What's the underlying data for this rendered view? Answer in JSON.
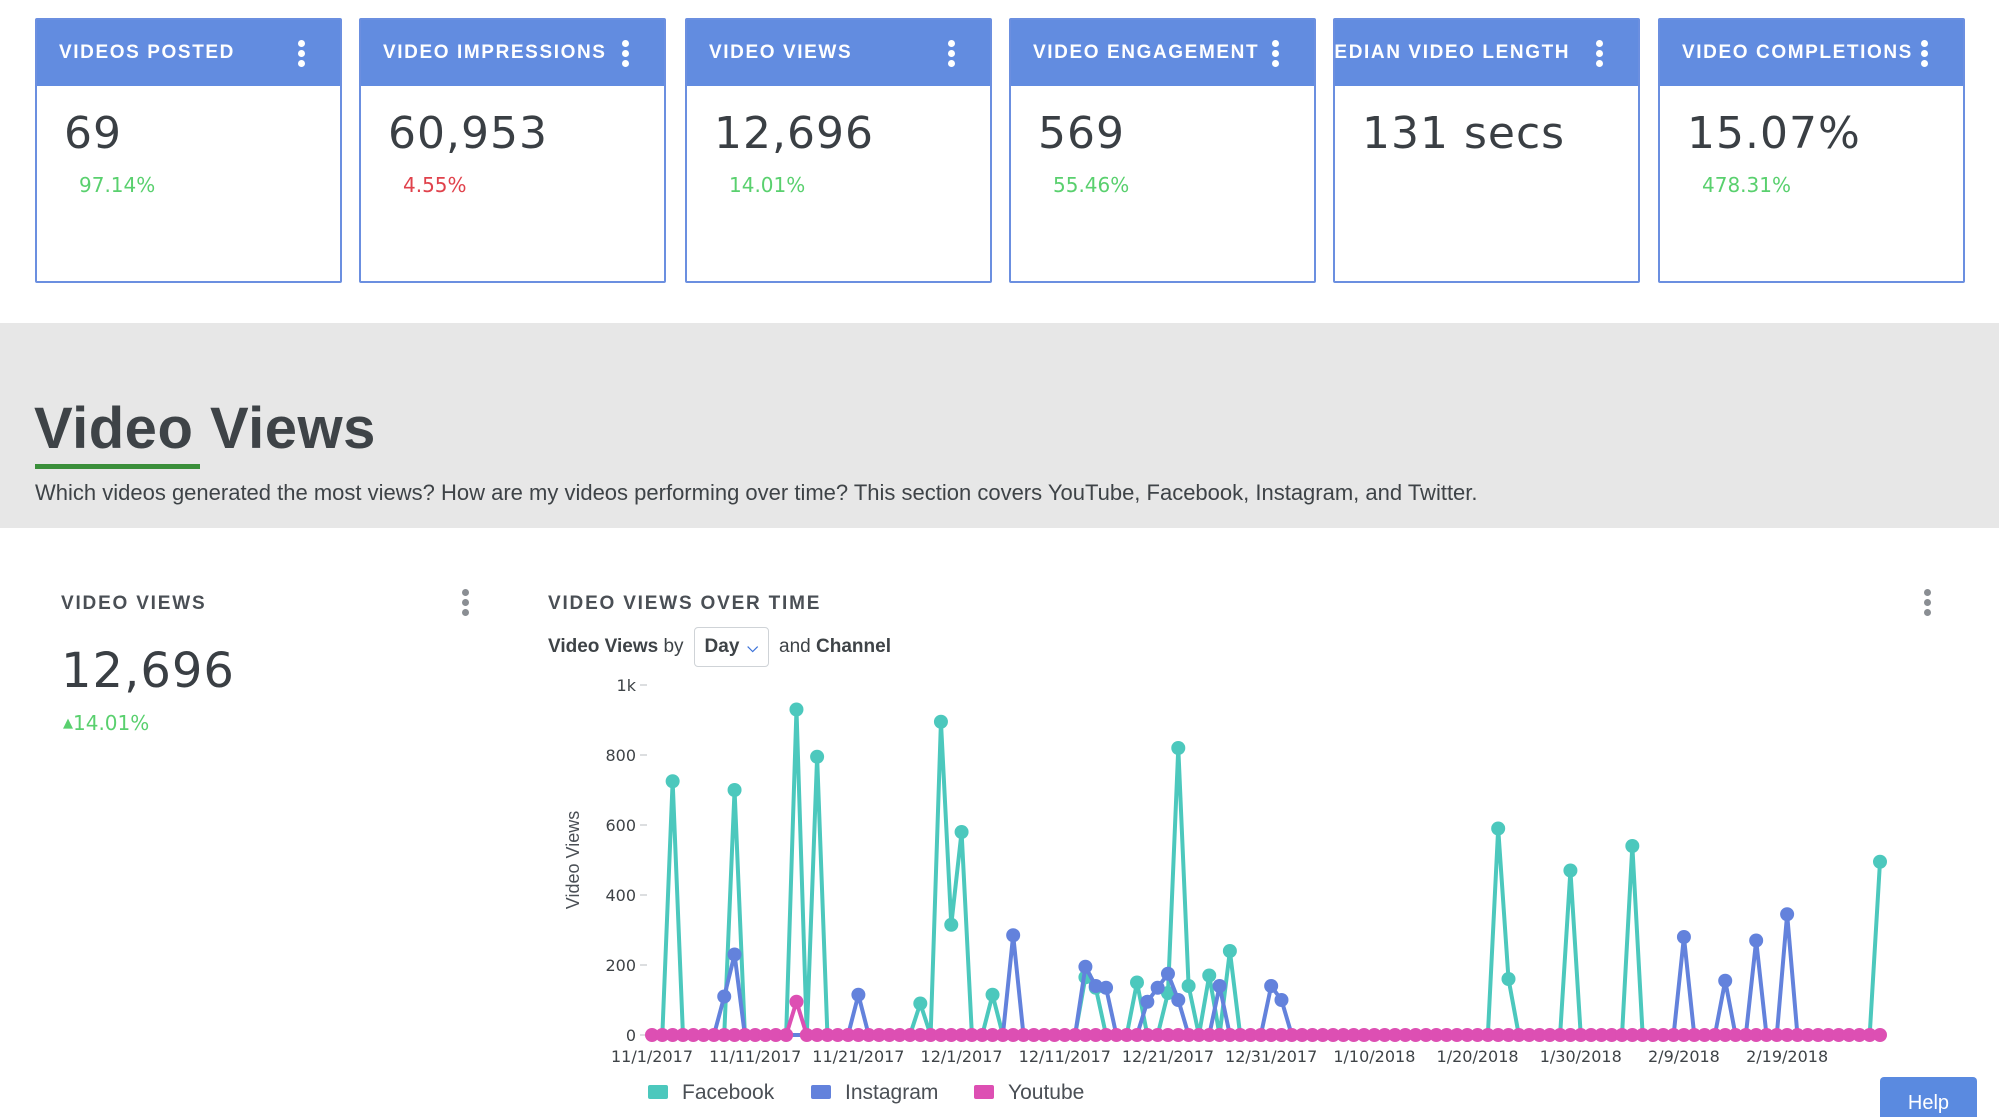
{
  "kpis": [
    {
      "title": "VIDEOS POSTED",
      "value": "69",
      "change": "97.14%",
      "direction": "up"
    },
    {
      "title": "VIDEO IMPRESSIONS",
      "value": "60,953",
      "change": "4.55%",
      "direction": "down"
    },
    {
      "title": "VIDEO VIEWS",
      "value": "12,696",
      "change": "14.01%",
      "direction": "up"
    },
    {
      "title": "VIDEO ENGAGEMENT",
      "value": "569",
      "change": "55.46%",
      "direction": "up"
    },
    {
      "title": "MEDIAN VIDEO LENGTH",
      "value": "131 secs",
      "change": "",
      "direction": ""
    },
    {
      "title": "VIDEO COMPLETIONS",
      "value": "15.07%",
      "change": "478.31%",
      "direction": "up"
    }
  ],
  "section": {
    "title": "Video Views",
    "description": "Which videos generated the most views? How are my videos performing over time? This section covers YouTube, Facebook, Instagram, and Twitter."
  },
  "video_views_widget": {
    "title": "VIDEO VIEWS",
    "value": "12,696",
    "change": "14.01%",
    "change_arrow": "▲"
  },
  "over_time_widget": {
    "title": "VIDEO VIEWS OVER TIME",
    "controls": {
      "prefix": "Video Views",
      "by": "by",
      "granularity": "Day",
      "and": "and",
      "channel": "Channel"
    }
  },
  "help": {
    "label": "Help"
  },
  "colors": {
    "facebook": "#4cc8bd",
    "instagram": "#6382dc",
    "youtube": "#dd4fb3",
    "kpi_header": "#628ce0",
    "positive": "#59d06e",
    "negative": "#e0424c"
  },
  "chart_data": {
    "type": "line",
    "title": "",
    "xlabel": "",
    "ylabel": "Video Views",
    "ylim": [
      0,
      1000
    ],
    "y_ticks": [
      "0",
      "200",
      "400",
      "600",
      "800",
      "1k"
    ],
    "x_ticks": [
      "11/1/2017",
      "11/11/2017",
      "11/21/2017",
      "12/1/2017",
      "12/11/2017",
      "12/21/2017",
      "12/31/2017",
      "1/10/2018",
      "1/20/2018",
      "1/30/2018",
      "2/9/2018",
      "2/19/2018"
    ],
    "x_start": "2017-11-01",
    "x_end": "2018-02-28",
    "grid": false,
    "legend_position": "bottom-left",
    "series": [
      {
        "name": "Facebook",
        "color": "#4cc8bd",
        "points": [
          [
            "2017-11-03",
            725
          ],
          [
            "2017-11-09",
            700
          ],
          [
            "2017-11-15",
            930
          ],
          [
            "2017-11-17",
            795
          ],
          [
            "2017-11-27",
            90
          ],
          [
            "2017-11-29",
            895
          ],
          [
            "2017-11-30",
            315
          ],
          [
            "2017-12-01",
            580
          ],
          [
            "2017-12-04",
            115
          ],
          [
            "2017-12-13",
            165
          ],
          [
            "2017-12-14",
            135
          ],
          [
            "2017-12-18",
            150
          ],
          [
            "2017-12-21",
            120
          ],
          [
            "2017-12-22",
            820
          ],
          [
            "2017-12-23",
            140
          ],
          [
            "2017-12-25",
            170
          ],
          [
            "2017-12-27",
            240
          ],
          [
            "2018-01-22",
            590
          ],
          [
            "2018-01-23",
            160
          ],
          [
            "2018-01-29",
            470
          ],
          [
            "2018-02-04",
            540
          ],
          [
            "2018-02-28",
            495
          ]
        ]
      },
      {
        "name": "Instagram",
        "color": "#6382dc",
        "points": [
          [
            "2017-11-08",
            110
          ],
          [
            "2017-11-09",
            230
          ],
          [
            "2017-11-21",
            115
          ],
          [
            "2017-12-06",
            285
          ],
          [
            "2017-12-13",
            195
          ],
          [
            "2017-12-14",
            140
          ],
          [
            "2017-12-15",
            135
          ],
          [
            "2017-12-19",
            95
          ],
          [
            "2017-12-20",
            135
          ],
          [
            "2017-12-21",
            175
          ],
          [
            "2017-12-22",
            100
          ],
          [
            "2017-12-26",
            140
          ],
          [
            "2017-12-31",
            140
          ],
          [
            "2018-01-01",
            100
          ],
          [
            "2018-02-09",
            280
          ],
          [
            "2018-02-13",
            155
          ],
          [
            "2018-02-16",
            270
          ],
          [
            "2018-02-19",
            345
          ]
        ]
      },
      {
        "name": "Youtube",
        "color": "#dd4fb3",
        "points": [
          [
            "2017-11-15",
            95
          ]
        ]
      }
    ]
  }
}
